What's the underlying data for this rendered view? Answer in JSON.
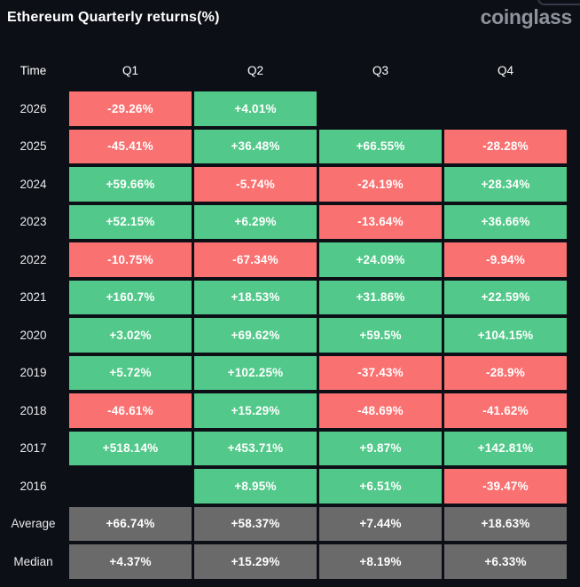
{
  "header": {
    "title": "Ethereum Quarterly returns(%)",
    "logo": "coinglass"
  },
  "colors": {
    "background": "#0d0f16",
    "green": "#52c98a",
    "red": "#fa7171",
    "gray": "#6a6a6a",
    "title_text": "#ffffff",
    "logo_text": "#8e939b",
    "cell_text": "#ffffff"
  },
  "chart_data": {
    "type": "table",
    "title": "Ethereum Quarterly returns(%)",
    "columns": [
      "Time",
      "Q1",
      "Q2",
      "Q3",
      "Q4"
    ],
    "rows": [
      {
        "label": "2026",
        "cells": [
          {
            "value": "-29.26%",
            "color": "red"
          },
          {
            "value": "+4.01%",
            "color": "green"
          },
          null,
          null
        ]
      },
      {
        "label": "2025",
        "cells": [
          {
            "value": "-45.41%",
            "color": "red"
          },
          {
            "value": "+36.48%",
            "color": "green"
          },
          {
            "value": "+66.55%",
            "color": "green"
          },
          {
            "value": "-28.28%",
            "color": "red"
          }
        ]
      },
      {
        "label": "2024",
        "cells": [
          {
            "value": "+59.66%",
            "color": "green"
          },
          {
            "value": "-5.74%",
            "color": "red"
          },
          {
            "value": "-24.19%",
            "color": "red"
          },
          {
            "value": "+28.34%",
            "color": "green"
          }
        ]
      },
      {
        "label": "2023",
        "cells": [
          {
            "value": "+52.15%",
            "color": "green"
          },
          {
            "value": "+6.29%",
            "color": "green"
          },
          {
            "value": "-13.64%",
            "color": "red"
          },
          {
            "value": "+36.66%",
            "color": "green"
          }
        ]
      },
      {
        "label": "2022",
        "cells": [
          {
            "value": "-10.75%",
            "color": "red"
          },
          {
            "value": "-67.34%",
            "color": "red"
          },
          {
            "value": "+24.09%",
            "color": "green"
          },
          {
            "value": "-9.94%",
            "color": "red"
          }
        ]
      },
      {
        "label": "2021",
        "cells": [
          {
            "value": "+160.7%",
            "color": "green"
          },
          {
            "value": "+18.53%",
            "color": "green"
          },
          {
            "value": "+31.86%",
            "color": "green"
          },
          {
            "value": "+22.59%",
            "color": "green"
          }
        ]
      },
      {
        "label": "2020",
        "cells": [
          {
            "value": "+3.02%",
            "color": "green"
          },
          {
            "value": "+69.62%",
            "color": "green"
          },
          {
            "value": "+59.5%",
            "color": "green"
          },
          {
            "value": "+104.15%",
            "color": "green"
          }
        ]
      },
      {
        "label": "2019",
        "cells": [
          {
            "value": "+5.72%",
            "color": "green"
          },
          {
            "value": "+102.25%",
            "color": "green"
          },
          {
            "value": "-37.43%",
            "color": "red"
          },
          {
            "value": "-28.9%",
            "color": "red"
          }
        ]
      },
      {
        "label": "2018",
        "cells": [
          {
            "value": "-46.61%",
            "color": "red"
          },
          {
            "value": "+15.29%",
            "color": "green"
          },
          {
            "value": "-48.69%",
            "color": "red"
          },
          {
            "value": "-41.62%",
            "color": "red"
          }
        ]
      },
      {
        "label": "2017",
        "cells": [
          {
            "value": "+518.14%",
            "color": "green"
          },
          {
            "value": "+453.71%",
            "color": "green"
          },
          {
            "value": "+9.87%",
            "color": "green"
          },
          {
            "value": "+142.81%",
            "color": "green"
          }
        ]
      },
      {
        "label": "2016",
        "cells": [
          null,
          {
            "value": "+8.95%",
            "color": "green"
          },
          {
            "value": "+6.51%",
            "color": "green"
          },
          {
            "value": "-39.47%",
            "color": "red"
          }
        ]
      },
      {
        "label": "Average",
        "cells": [
          {
            "value": "+66.74%",
            "color": "gray"
          },
          {
            "value": "+58.37%",
            "color": "gray"
          },
          {
            "value": "+7.44%",
            "color": "gray"
          },
          {
            "value": "+18.63%",
            "color": "gray"
          }
        ]
      },
      {
        "label": "Median",
        "cells": [
          {
            "value": "+4.37%",
            "color": "gray"
          },
          {
            "value": "+15.29%",
            "color": "gray"
          },
          {
            "value": "+8.19%",
            "color": "gray"
          },
          {
            "value": "+6.33%",
            "color": "gray"
          }
        ]
      }
    ]
  }
}
